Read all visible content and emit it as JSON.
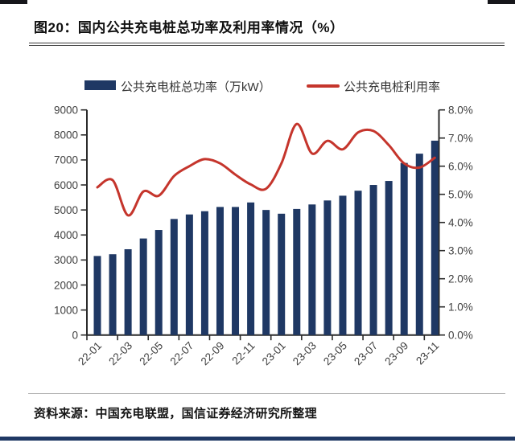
{
  "title": "图20：国内公共充电桩总功率及利用率情况（%）",
  "legend": {
    "bar_label": "公共充电桩总功率（万kW）",
    "line_label": "公共充电桩利用率"
  },
  "source": "资料来源：中国充电联盟，国信证券经济研究所整理",
  "colors": {
    "bar": "#1F3864",
    "line": "#C5352C",
    "axis": "#2b2b2b",
    "tick_label": "#3f3f3f",
    "bottom_bar": "#1F3864"
  },
  "chart_data": {
    "type": "bar",
    "subtype": "combo bar+line, dual axis",
    "title": "国内公共充电桩总功率及利用率情况（%）",
    "categories": [
      "22-01",
      "22-02",
      "22-03",
      "22-04",
      "22-05",
      "22-06",
      "22-07",
      "22-08",
      "22-09",
      "22-10",
      "22-11",
      "22-12",
      "23-01",
      "23-02",
      "23-03",
      "23-04",
      "23-05",
      "23-06",
      "23-07",
      "23-08",
      "23-09",
      "23-10",
      "23-11"
    ],
    "series": [
      {
        "name": "公共充电桩总功率（万kW）",
        "type": "bar",
        "axis": "left",
        "values": [
          3160,
          3230,
          3430,
          3860,
          4200,
          4640,
          4820,
          4950,
          5120,
          5120,
          5300,
          5000,
          4850,
          5040,
          5220,
          5380,
          5570,
          5770,
          6000,
          6160,
          6880,
          7250,
          7770
        ]
      },
      {
        "name": "公共充电桩利用率",
        "type": "line",
        "axis": "right",
        "values": [
          5.25,
          5.5,
          4.25,
          5.1,
          4.95,
          5.65,
          6.0,
          6.25,
          6.1,
          5.7,
          5.35,
          5.2,
          6.1,
          7.5,
          6.45,
          6.9,
          6.6,
          7.2,
          7.25,
          6.75,
          6.1,
          5.95,
          6.3
        ]
      }
    ],
    "left_axis": {
      "min": 0,
      "max": 9000,
      "step": 1000,
      "tick_labels": [
        "0",
        "1000",
        "2000",
        "3000",
        "4000",
        "5000",
        "6000",
        "7000",
        "8000",
        "9000"
      ]
    },
    "right_axis": {
      "min": 0,
      "max": 8,
      "step": 1,
      "tick_labels": [
        "0.0%",
        "1.0%",
        "2.0%",
        "3.0%",
        "4.0%",
        "5.0%",
        "6.0%",
        "7.0%",
        "8.0%"
      ]
    },
    "x_tick_labels": [
      "22-01",
      "22-03",
      "22-05",
      "22-07",
      "22-09",
      "22-11",
      "23-01",
      "23-03",
      "23-05",
      "23-07",
      "23-09",
      "23-11"
    ],
    "grid": false,
    "legend_position": "top"
  }
}
